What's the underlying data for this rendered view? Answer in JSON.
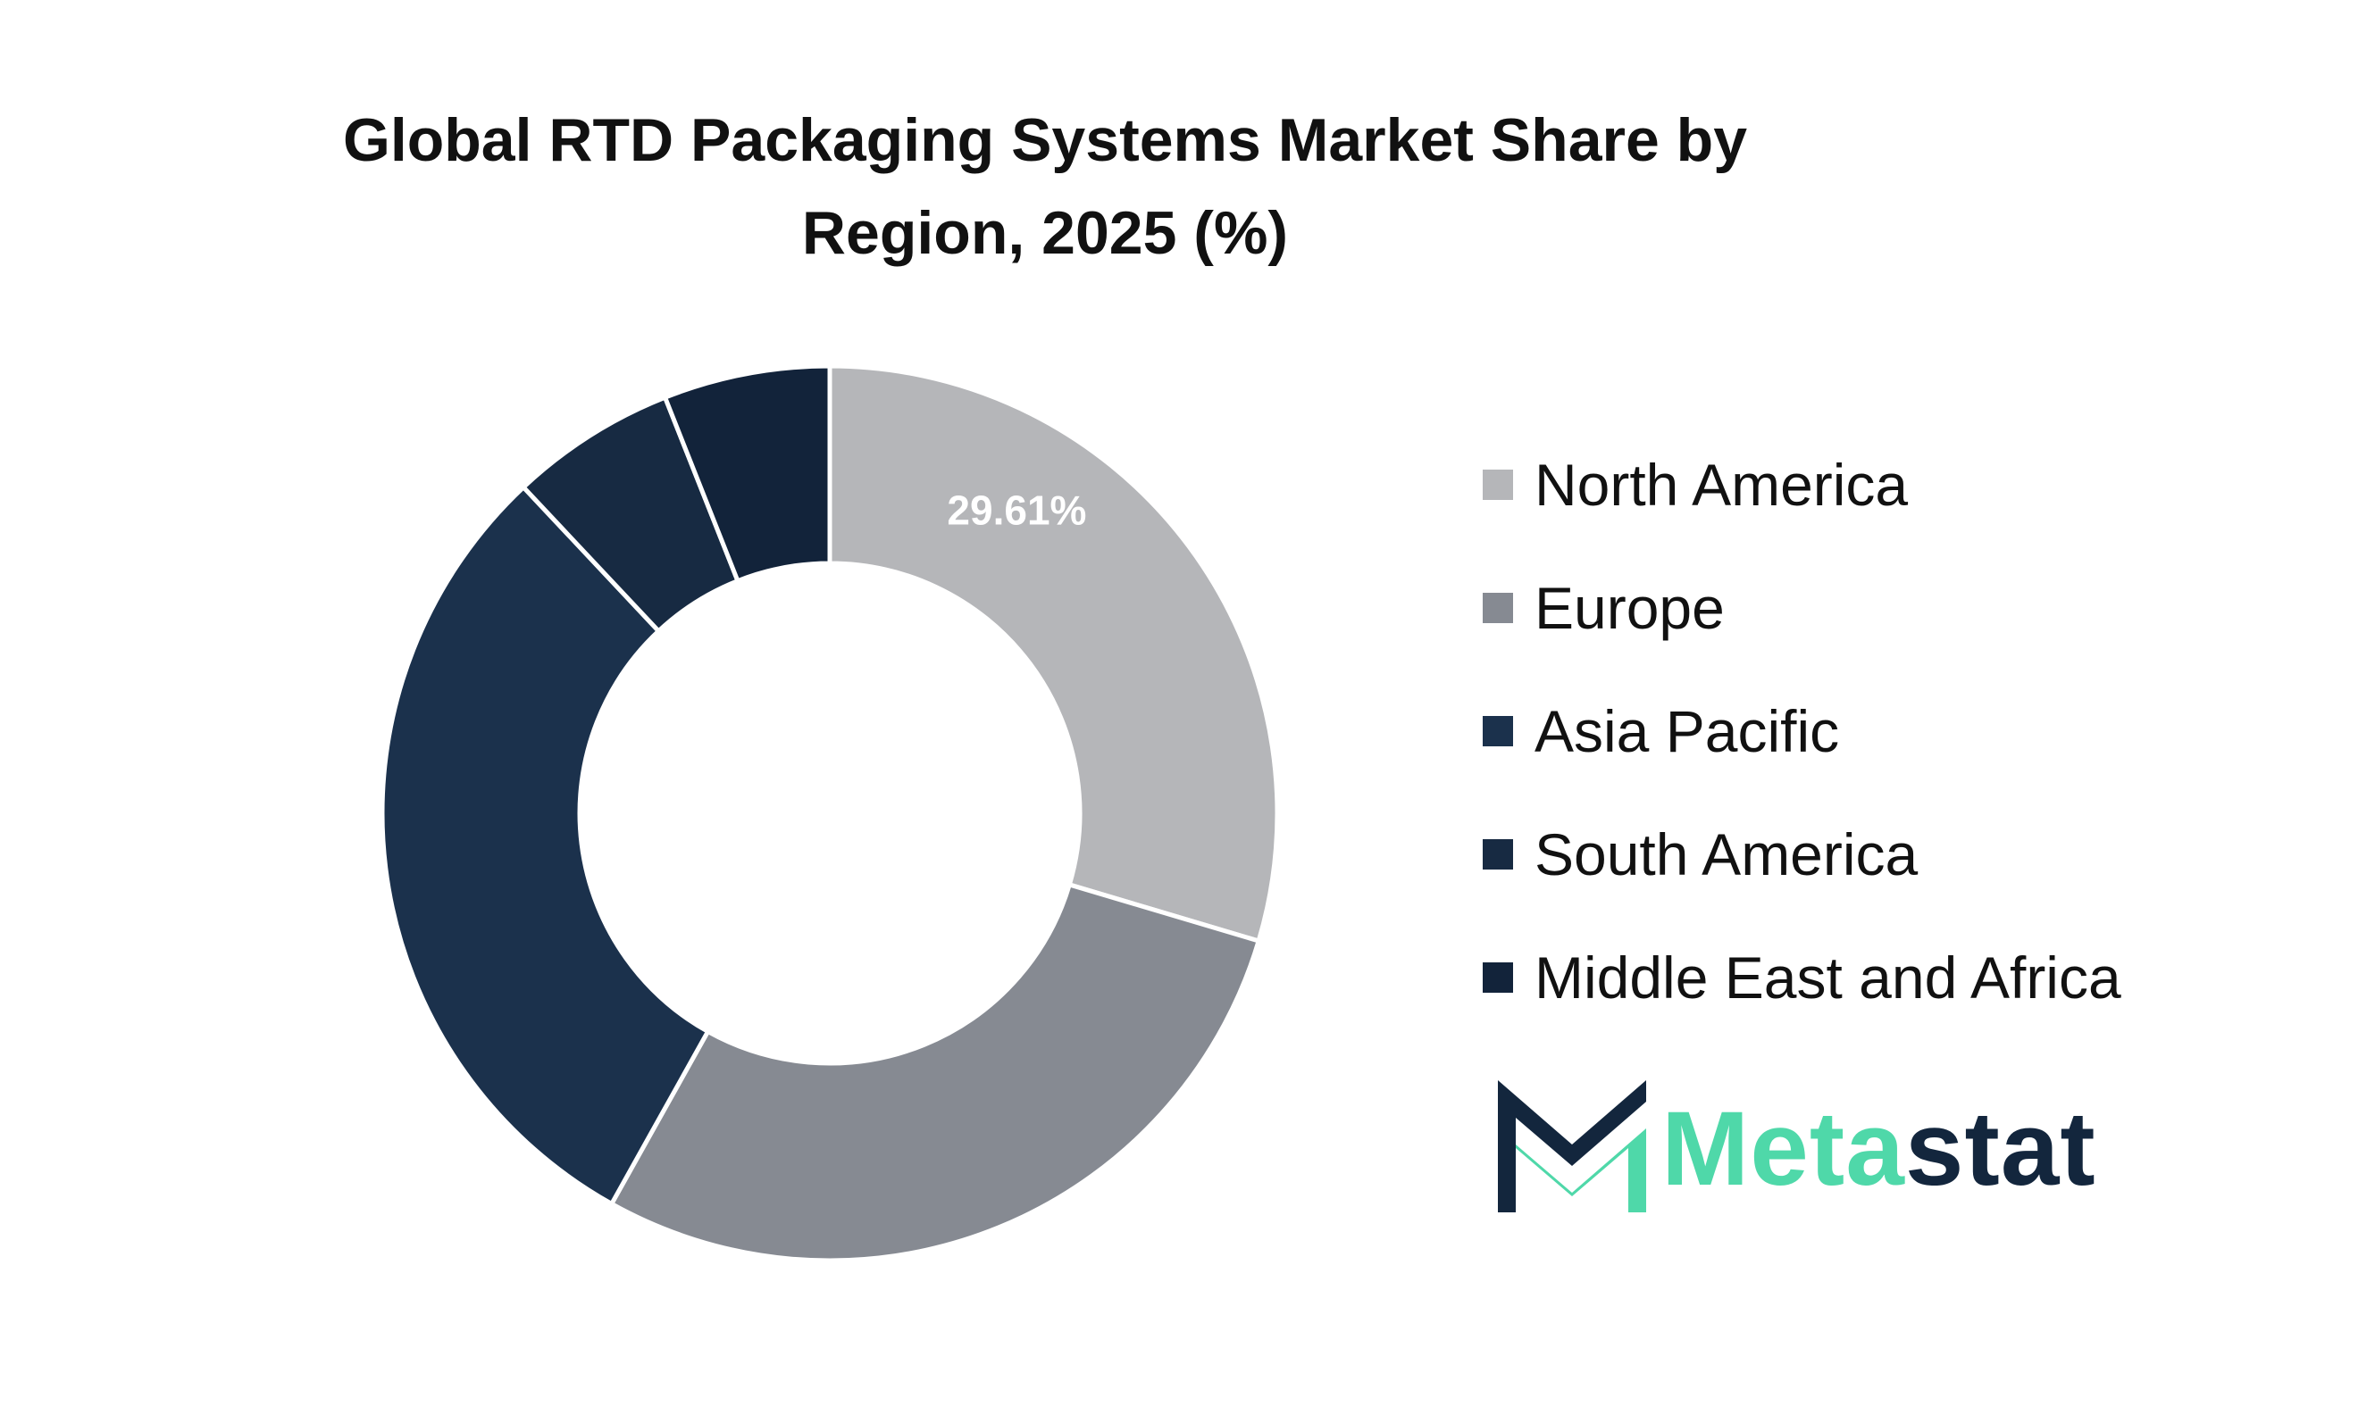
{
  "chart_data": {
    "type": "pie",
    "variant": "donut",
    "title": "Global RTD Packaging Systems Market Share by Region, 2025 (%)",
    "categories": [
      "North America",
      "Europe",
      "Asia Pacific",
      "South America",
      "Middle East and Africa"
    ],
    "values": [
      29.61,
      28.5,
      29.9,
      6.0,
      6.0
    ],
    "colors": [
      "#b5b6b9",
      "#868a92",
      "#1b314c",
      "#172a42",
      "#12233a"
    ],
    "data_labels": [
      "29.61%",
      "",
      "",
      "",
      ""
    ],
    "legend_position": "right",
    "start_angle": "12 o'clock, clockwise"
  },
  "legend": {
    "items": [
      {
        "label": "North America",
        "color": "#b5b6b9"
      },
      {
        "label": "Europe",
        "color": "#868a92"
      },
      {
        "label": "Asia Pacific",
        "color": "#1b314c"
      },
      {
        "label": "South America",
        "color": "#172a42"
      },
      {
        "label": "Middle East and Africa",
        "color": "#12233a"
      }
    ]
  },
  "branding": {
    "logo_text_part1": "Meta",
    "logo_text_part2": "stat",
    "colors": {
      "dark": "#13263d",
      "accent": "#4fd8a9"
    }
  }
}
